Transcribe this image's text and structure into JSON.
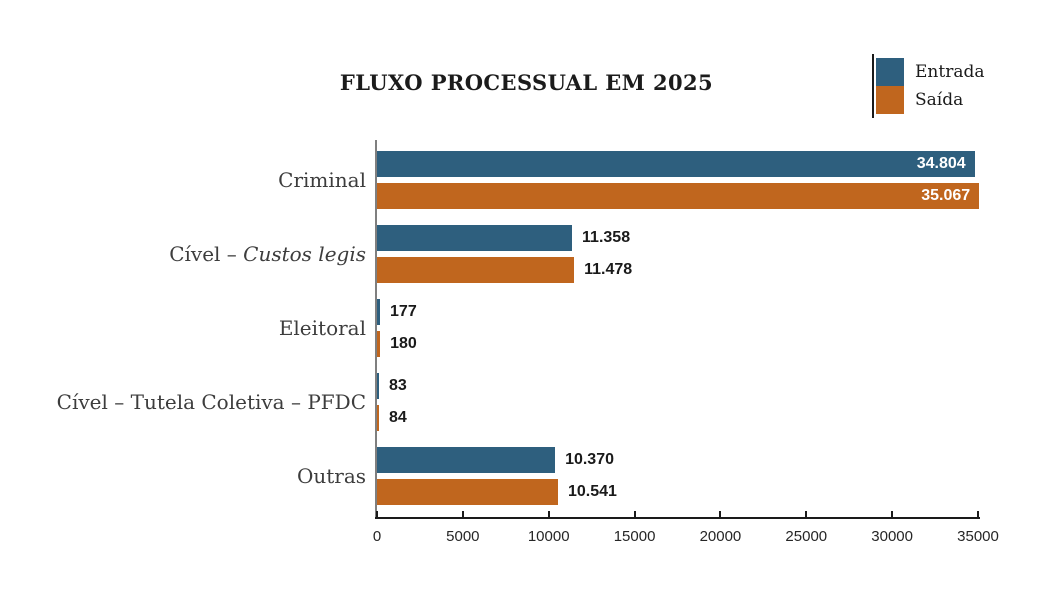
{
  "chart_data": {
    "type": "bar",
    "orientation": "horizontal",
    "title": "FLUXO PROCESSUAL EM 2025",
    "grid": false,
    "legend_position": "top-right",
    "categories": [
      {
        "text": "Criminal",
        "italic": ""
      },
      {
        "text": "Cível – ",
        "italic": "Custos legis"
      },
      {
        "text": "Eleitoral",
        "italic": ""
      },
      {
        "text": "Cível – Tutela Coletiva – PFDC",
        "italic": ""
      },
      {
        "text": "Outras",
        "italic": ""
      }
    ],
    "series": [
      {
        "name": "Entrada",
        "color": "#2E5F7E",
        "values": [
          34804,
          11358,
          177,
          83,
          10370
        ],
        "value_labels": [
          "34.804",
          "11.358",
          "177",
          "83",
          "10.370"
        ],
        "label_inside": [
          true,
          false,
          false,
          false,
          false
        ]
      },
      {
        "name": "Saída",
        "color": "#C0661E",
        "values": [
          35067,
          11478,
          180,
          84,
          10541
        ],
        "value_labels": [
          "35.067",
          "11.478",
          "180",
          "84",
          "10.541"
        ],
        "label_inside": [
          true,
          false,
          false,
          false,
          false
        ]
      }
    ],
    "x_axis": {
      "min": 0,
      "max": 35000,
      "ticks": [
        0,
        5000,
        10000,
        15000,
        20000,
        25000,
        30000,
        35000
      ],
      "tick_labels": [
        "0",
        "5000",
        "10000",
        "15000",
        "20000",
        "25000",
        "30000",
        "35000"
      ]
    },
    "colors": {
      "entrada": "#2E5F7E",
      "saida": "#C0661E",
      "x_axis_line": "#1A1A1A",
      "y_axis_line": "#7F7F7F",
      "text": "#3D3D3D",
      "inside_value_text": "#FFFFFF"
    }
  }
}
